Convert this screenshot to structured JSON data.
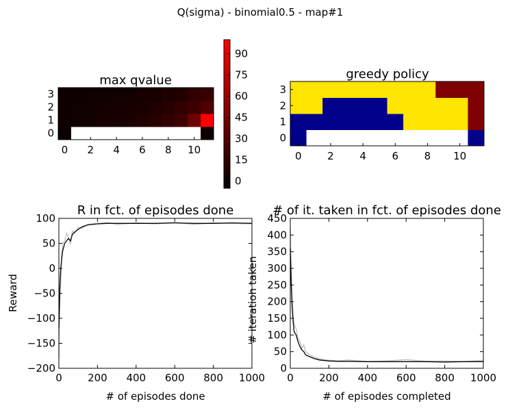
{
  "suptitle": "Q(sigma) - binomial0.5 - map#1",
  "chart_data": [
    {
      "type": "heatmap",
      "title": "max qvalue",
      "rows": [
        0,
        1,
        2,
        3
      ],
      "cols": [
        0,
        1,
        2,
        3,
        4,
        5,
        6,
        7,
        8,
        9,
        10,
        11
      ],
      "x_ticks": [
        "0",
        "2",
        "4",
        "6",
        "8",
        "10"
      ],
      "y_ticks": [
        "0",
        "1",
        "2",
        "3"
      ],
      "values": [
        [
          0,
          null,
          null,
          null,
          null,
          null,
          null,
          null,
          null,
          null,
          null,
          0
        ],
        [
          1,
          2,
          3,
          4,
          5,
          6,
          8,
          11,
          15,
          20,
          40,
          100
        ],
        [
          1,
          2,
          2,
          3,
          4,
          5,
          6,
          8,
          11,
          15,
          20,
          28
        ],
        [
          1,
          1,
          2,
          2,
          3,
          3,
          4,
          5,
          7,
          9,
          15,
          18
        ]
      ],
      "colorbar": {
        "ticks": [
          "0",
          "15",
          "30",
          "45",
          "60",
          "75",
          "90"
        ],
        "vmin": -5,
        "vmax": 100,
        "colormap": "black-to-red"
      }
    },
    {
      "type": "heatmap",
      "title": "greedy policy",
      "x_ticks": [
        "0",
        "2",
        "4",
        "6",
        "8",
        "10"
      ],
      "y_ticks": [
        "0",
        "1",
        "2",
        "3"
      ],
      "action_colors": {
        "0": "#00008b",
        "1": "#ffe500",
        "2": "#7f0000"
      },
      "blank_color": "#ffffff",
      "actions": [
        [
          0,
          null,
          null,
          null,
          null,
          null,
          null,
          null,
          null,
          null,
          null,
          0
        ],
        [
          0,
          0,
          0,
          0,
          0,
          0,
          0,
          1,
          1,
          1,
          1,
          2
        ],
        [
          1,
          1,
          0,
          0,
          0,
          0,
          1,
          1,
          1,
          1,
          1,
          2
        ],
        [
          1,
          1,
          1,
          1,
          1,
          1,
          1,
          1,
          1,
          2,
          2,
          2
        ]
      ]
    },
    {
      "type": "line",
      "title": "R in fct. of episodes done",
      "xlabel": "# of episodes done",
      "ylabel": "Reward",
      "xlim": [
        0,
        1000
      ],
      "ylim": [
        -200,
        100
      ],
      "x_ticks": [
        "0",
        "200",
        "400",
        "600",
        "800",
        "1000"
      ],
      "y_ticks": [
        "−200",
        "−150",
        "−100",
        "−50",
        "0",
        "50",
        "100"
      ],
      "series": [
        {
          "color": "#000000",
          "x": [
            0,
            5,
            10,
            15,
            20,
            30,
            40,
            50,
            60,
            70,
            80,
            100,
            120,
            150,
            200,
            250,
            300,
            400,
            500,
            600,
            700,
            800,
            900,
            1000
          ],
          "y": [
            -120,
            -40,
            0,
            20,
            35,
            50,
            55,
            60,
            55,
            68,
            72,
            78,
            83,
            87,
            89,
            90,
            90,
            90,
            90,
            91,
            90,
            90,
            91,
            90
          ]
        },
        {
          "color": "#c8c8c8",
          "x": [
            0,
            5,
            10,
            15,
            20,
            30,
            40,
            50,
            60,
            70,
            80,
            100,
            120,
            150,
            200,
            250,
            300,
            400,
            500,
            600,
            700,
            800,
            900,
            1000
          ],
          "y": [
            -180,
            -60,
            -20,
            30,
            50,
            55,
            70,
            62,
            48,
            75,
            70,
            82,
            80,
            88,
            90,
            92,
            88,
            91,
            89,
            92,
            88,
            91,
            90,
            89
          ]
        }
      ]
    },
    {
      "type": "line",
      "title": "# of it. taken in fct. of episodes done",
      "xlabel": "# of episodes completed",
      "ylabel": "# iteration taken",
      "xlim": [
        0,
        1000
      ],
      "ylim": [
        0,
        450
      ],
      "x_ticks": [
        "0",
        "200",
        "400",
        "600",
        "800",
        "1000"
      ],
      "y_ticks": [
        "0",
        "50",
        "100",
        "150",
        "200",
        "250",
        "300",
        "350",
        "400",
        "450"
      ],
      "series": [
        {
          "color": "#000000",
          "x": [
            0,
            5,
            10,
            15,
            20,
            30,
            40,
            50,
            60,
            70,
            80,
            100,
            120,
            150,
            200,
            250,
            300,
            400,
            500,
            600,
            700,
            800,
            900,
            1000
          ],
          "y": [
            360,
            250,
            180,
            140,
            110,
            100,
            80,
            65,
            55,
            50,
            40,
            35,
            30,
            25,
            22,
            21,
            21,
            20,
            20,
            20,
            20,
            19,
            20,
            20
          ]
        },
        {
          "color": "#c8c8c8",
          "x": [
            0,
            5,
            10,
            15,
            20,
            30,
            40,
            50,
            60,
            70,
            80,
            100,
            120,
            150,
            200,
            250,
            300,
            400,
            500,
            600,
            700,
            800,
            900,
            1000
          ],
          "y": [
            420,
            300,
            200,
            160,
            130,
            120,
            90,
            80,
            60,
            70,
            50,
            40,
            35,
            28,
            24,
            22,
            25,
            20,
            22,
            26,
            21,
            22,
            20,
            24
          ]
        }
      ]
    }
  ]
}
